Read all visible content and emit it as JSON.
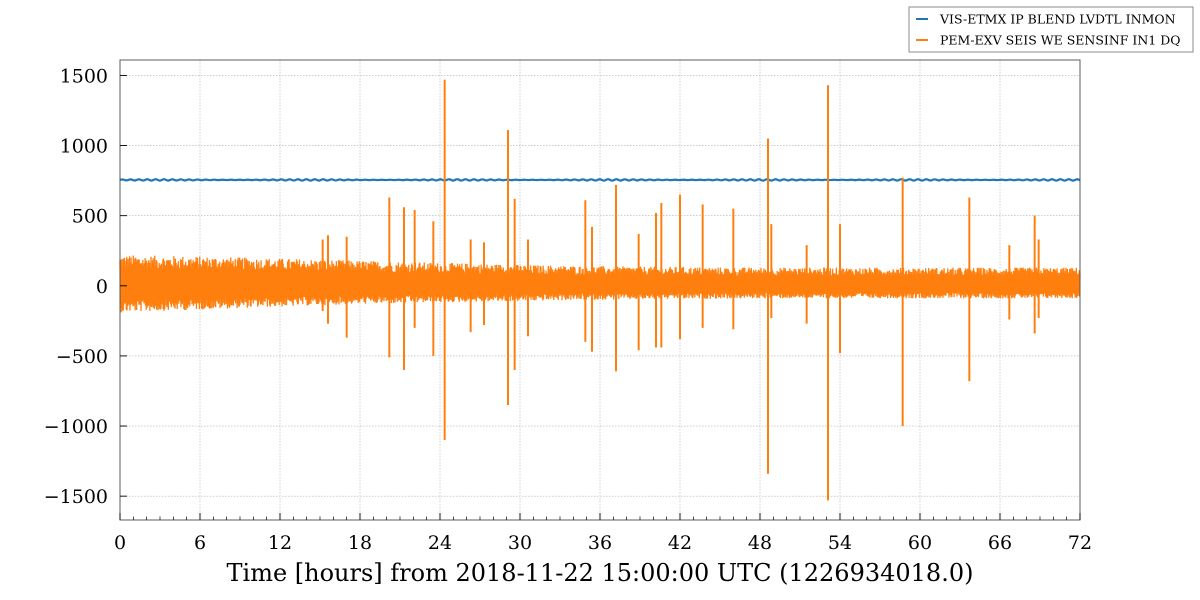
{
  "chart_data": {
    "type": "line",
    "title": "",
    "xlabel": "Time [hours] from 2018-11-22 15:00:00 UTC (1226934018.0)",
    "ylabel": "",
    "xlim": [
      0,
      72
    ],
    "ylim": [
      -1670,
      1610
    ],
    "x_ticks": [
      0,
      6,
      12,
      18,
      24,
      30,
      36,
      42,
      48,
      54,
      60,
      66,
      72
    ],
    "y_ticks": [
      -1500,
      -1000,
      -500,
      0,
      500,
      1000,
      1500
    ],
    "x_tick_labels": [
      "0",
      "6",
      "12",
      "18",
      "24",
      "30",
      "36",
      "42",
      "48",
      "54",
      "60",
      "66",
      "72"
    ],
    "y_tick_labels": [
      "−1500",
      "−1000",
      "−500",
      "0",
      "500",
      "1000",
      "1500"
    ],
    "grid": true,
    "legend_position": "top-right",
    "series": [
      {
        "name": "VIS-ETMX IP BLEND LVDTL INMON",
        "color": "#1f77b4",
        "level": 755,
        "ripple": 5
      },
      {
        "name": "PEM-EXV SEIS WE SENSINF IN1 DQ",
        "color": "#ff7f0e",
        "envelope": {
          "x": [
            0,
            6,
            12,
            18,
            24,
            30,
            36,
            42,
            48,
            54,
            60,
            66,
            72
          ],
          "upper": [
            220,
            210,
            195,
            180,
            165,
            150,
            140,
            135,
            130,
            130,
            130,
            130,
            130
          ],
          "lower": [
            -190,
            -170,
            -150,
            -130,
            -120,
            -110,
            -100,
            -95,
            -90,
            -90,
            -90,
            -90,
            -90
          ]
        },
        "spikes": [
          {
            "x": 15.2,
            "max": 330,
            "min": -180
          },
          {
            "x": 15.6,
            "max": 360,
            "min": -270
          },
          {
            "x": 17.0,
            "max": 350,
            "min": -370
          },
          {
            "x": 20.2,
            "max": 630,
            "min": -510
          },
          {
            "x": 21.3,
            "max": 560,
            "min": -600
          },
          {
            "x": 22.1,
            "max": 540,
            "min": -300
          },
          {
            "x": 23.5,
            "max": 460,
            "min": -500
          },
          {
            "x": 24.35,
            "max": 1470,
            "min": -1100
          },
          {
            "x": 26.3,
            "max": 330,
            "min": -330
          },
          {
            "x": 27.3,
            "max": 310,
            "min": -280
          },
          {
            "x": 29.1,
            "max": 1110,
            "min": -850
          },
          {
            "x": 29.6,
            "max": 620,
            "min": -600
          },
          {
            "x": 30.6,
            "max": 330,
            "min": -360
          },
          {
            "x": 34.9,
            "max": 610,
            "min": -400
          },
          {
            "x": 35.4,
            "max": 420,
            "min": -470
          },
          {
            "x": 37.2,
            "max": 720,
            "min": -610
          },
          {
            "x": 38.9,
            "max": 370,
            "min": -460
          },
          {
            "x": 40.2,
            "max": 520,
            "min": -440
          },
          {
            "x": 40.6,
            "max": 590,
            "min": -440
          },
          {
            "x": 42.0,
            "max": 650,
            "min": -380
          },
          {
            "x": 43.7,
            "max": 580,
            "min": -300
          },
          {
            "x": 46.0,
            "max": 550,
            "min": -310
          },
          {
            "x": 48.6,
            "max": 1050,
            "min": -1340
          },
          {
            "x": 48.85,
            "max": 440,
            "min": -230
          },
          {
            "x": 51.5,
            "max": 290,
            "min": -270
          },
          {
            "x": 53.1,
            "max": 1430,
            "min": -1530
          },
          {
            "x": 54.0,
            "max": 440,
            "min": -480
          },
          {
            "x": 58.7,
            "max": 770,
            "min": -1000
          },
          {
            "x": 63.7,
            "max": 630,
            "min": -680
          },
          {
            "x": 66.7,
            "max": 290,
            "min": -240
          },
          {
            "x": 68.6,
            "max": 500,
            "min": -340
          },
          {
            "x": 68.9,
            "max": 330,
            "min": -230
          }
        ]
      }
    ]
  }
}
